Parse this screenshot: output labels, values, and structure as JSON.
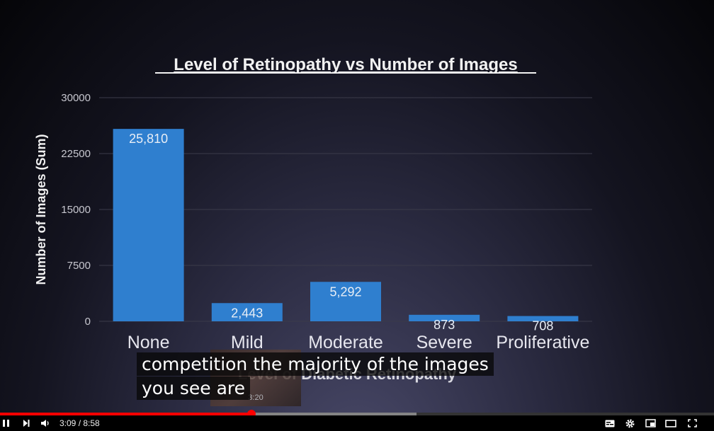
{
  "chart_data": {
    "type": "bar",
    "title": "Level of Retinopathy vs Number of Images",
    "xlabel": "Level of Diabetic Retinopathy",
    "ylabel": "Number of Images (Sum)",
    "categories": [
      "None",
      "Mild",
      "Moderate",
      "Severe",
      "Proliferative"
    ],
    "values": [
      25810,
      2443,
      5292,
      873,
      708
    ],
    "data_labels": [
      "25,810",
      "2,443",
      "5,292",
      "873",
      "708"
    ],
    "yticks": [
      0,
      7500,
      15000,
      22500,
      30000
    ],
    "ylim": [
      0,
      30000
    ],
    "grid": true,
    "bar_color": "#2f7fcf"
  },
  "captions": {
    "line1": "competition the majority of the images",
    "line2": "you see are"
  },
  "preview_thumbnail": {
    "time": "3:20"
  },
  "player": {
    "current_time": "3:09",
    "duration": "8:58",
    "time_display": "3:09 / 8:58",
    "progress_fraction": 0.352,
    "buffered_fraction": 0.583,
    "progress_color": "#ff0000",
    "icons": {
      "pause": "pause-icon",
      "next": "next-icon",
      "volume": "volume-icon",
      "subtitles": "subtitles-icon",
      "settings": "settings-icon",
      "miniplayer": "miniplayer-icon",
      "theater": "theater-mode-icon",
      "fullscreen": "fullscreen-icon"
    }
  }
}
